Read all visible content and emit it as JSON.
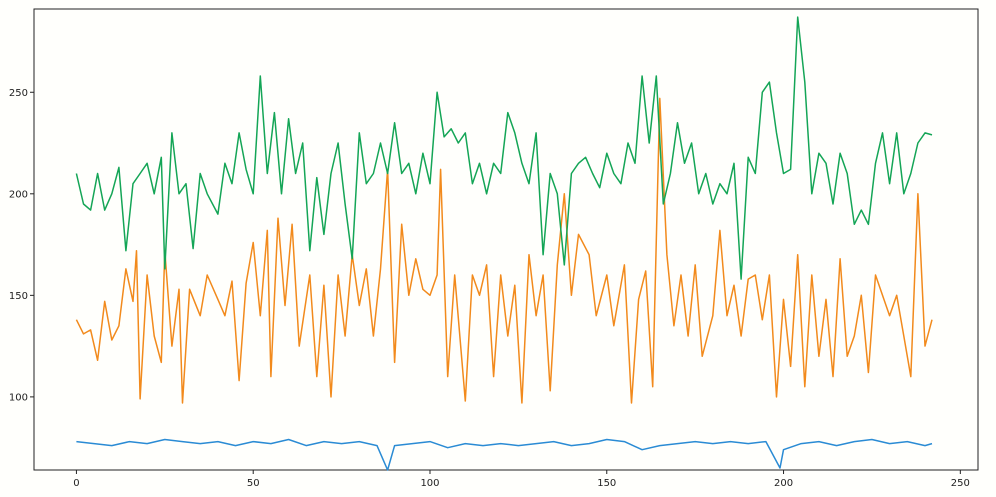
{
  "chart_data": {
    "type": "line",
    "title": "",
    "xlabel": "",
    "ylabel": "",
    "xlim": [
      -12,
      255
    ],
    "ylim": [
      64,
      291
    ],
    "x_ticks": [
      0,
      50,
      100,
      150,
      200,
      250
    ],
    "y_ticks": [
      100,
      150,
      200,
      250
    ],
    "grid": false,
    "legend": "none",
    "series": [
      {
        "color": "#2a8bd4",
        "points": [
          [
            0,
            78
          ],
          [
            5,
            77
          ],
          [
            10,
            76
          ],
          [
            15,
            78
          ],
          [
            20,
            77
          ],
          [
            25,
            79
          ],
          [
            30,
            78
          ],
          [
            35,
            77
          ],
          [
            40,
            78
          ],
          [
            45,
            76
          ],
          [
            50,
            78
          ],
          [
            55,
            77
          ],
          [
            60,
            79
          ],
          [
            65,
            76
          ],
          [
            70,
            78
          ],
          [
            75,
            77
          ],
          [
            80,
            78
          ],
          [
            85,
            76
          ],
          [
            88,
            64
          ],
          [
            90,
            76
          ],
          [
            95,
            77
          ],
          [
            100,
            78
          ],
          [
            105,
            75
          ],
          [
            110,
            77
          ],
          [
            115,
            76
          ],
          [
            120,
            77
          ],
          [
            125,
            76
          ],
          [
            130,
            77
          ],
          [
            135,
            78
          ],
          [
            140,
            76
          ],
          [
            145,
            77
          ],
          [
            150,
            79
          ],
          [
            155,
            78
          ],
          [
            160,
            74
          ],
          [
            165,
            76
          ],
          [
            170,
            77
          ],
          [
            175,
            78
          ],
          [
            180,
            77
          ],
          [
            185,
            78
          ],
          [
            190,
            77
          ],
          [
            195,
            78
          ],
          [
            199,
            65
          ],
          [
            200,
            74
          ],
          [
            205,
            77
          ],
          [
            210,
            78
          ],
          [
            215,
            76
          ],
          [
            220,
            78
          ],
          [
            225,
            79
          ],
          [
            230,
            77
          ],
          [
            235,
            78
          ],
          [
            240,
            76
          ],
          [
            242,
            77
          ]
        ]
      },
      {
        "color": "#f28a1c",
        "points": [
          [
            0,
            138
          ],
          [
            2,
            131
          ],
          [
            4,
            133
          ],
          [
            6,
            118
          ],
          [
            8,
            147
          ],
          [
            10,
            128
          ],
          [
            12,
            135
          ],
          [
            14,
            163
          ],
          [
            16,
            147
          ],
          [
            17,
            172
          ],
          [
            18,
            99
          ],
          [
            20,
            160
          ],
          [
            22,
            130
          ],
          [
            24,
            117
          ],
          [
            25,
            172
          ],
          [
            27,
            125
          ],
          [
            29,
            153
          ],
          [
            30,
            97
          ],
          [
            32,
            153
          ],
          [
            35,
            140
          ],
          [
            37,
            160
          ],
          [
            40,
            148
          ],
          [
            42,
            140
          ],
          [
            44,
            157
          ],
          [
            46,
            108
          ],
          [
            48,
            156
          ],
          [
            50,
            176
          ],
          [
            52,
            140
          ],
          [
            54,
            182
          ],
          [
            55,
            110
          ],
          [
            57,
            188
          ],
          [
            59,
            145
          ],
          [
            61,
            185
          ],
          [
            63,
            125
          ],
          [
            66,
            160
          ],
          [
            68,
            110
          ],
          [
            70,
            155
          ],
          [
            72,
            100
          ],
          [
            74,
            160
          ],
          [
            76,
            130
          ],
          [
            78,
            170
          ],
          [
            80,
            145
          ],
          [
            82,
            163
          ],
          [
            84,
            130
          ],
          [
            86,
            163
          ],
          [
            88,
            212
          ],
          [
            90,
            117
          ],
          [
            92,
            185
          ],
          [
            94,
            150
          ],
          [
            96,
            168
          ],
          [
            98,
            153
          ],
          [
            100,
            150
          ],
          [
            102,
            160
          ],
          [
            103,
            212
          ],
          [
            105,
            110
          ],
          [
            107,
            160
          ],
          [
            110,
            98
          ],
          [
            112,
            160
          ],
          [
            114,
            150
          ],
          [
            116,
            165
          ],
          [
            118,
            110
          ],
          [
            120,
            160
          ],
          [
            122,
            130
          ],
          [
            124,
            155
          ],
          [
            126,
            97
          ],
          [
            128,
            170
          ],
          [
            130,
            140
          ],
          [
            132,
            160
          ],
          [
            134,
            103
          ],
          [
            136,
            165
          ],
          [
            138,
            200
          ],
          [
            140,
            150
          ],
          [
            142,
            180
          ],
          [
            145,
            170
          ],
          [
            147,
            140
          ],
          [
            150,
            160
          ],
          [
            152,
            135
          ],
          [
            155,
            165
          ],
          [
            157,
            97
          ],
          [
            159,
            148
          ],
          [
            161,
            162
          ],
          [
            163,
            105
          ],
          [
            165,
            247
          ],
          [
            167,
            170
          ],
          [
            169,
            135
          ],
          [
            171,
            160
          ],
          [
            173,
            130
          ],
          [
            175,
            165
          ],
          [
            177,
            120
          ],
          [
            180,
            140
          ],
          [
            182,
            182
          ],
          [
            184,
            140
          ],
          [
            186,
            155
          ],
          [
            188,
            130
          ],
          [
            190,
            158
          ],
          [
            192,
            160
          ],
          [
            194,
            138
          ],
          [
            196,
            160
          ],
          [
            198,
            100
          ],
          [
            200,
            148
          ],
          [
            202,
            115
          ],
          [
            204,
            170
          ],
          [
            206,
            105
          ],
          [
            208,
            160
          ],
          [
            210,
            120
          ],
          [
            212,
            148
          ],
          [
            214,
            110
          ],
          [
            216,
            168
          ],
          [
            218,
            120
          ],
          [
            220,
            130
          ],
          [
            222,
            150
          ],
          [
            224,
            112
          ],
          [
            226,
            160
          ],
          [
            228,
            150
          ],
          [
            230,
            140
          ],
          [
            232,
            150
          ],
          [
            234,
            130
          ],
          [
            236,
            110
          ],
          [
            238,
            200
          ],
          [
            240,
            125
          ],
          [
            242,
            138
          ]
        ]
      },
      {
        "color": "#14a556",
        "points": [
          [
            0,
            210
          ],
          [
            2,
            195
          ],
          [
            4,
            192
          ],
          [
            6,
            210
          ],
          [
            8,
            192
          ],
          [
            10,
            200
          ],
          [
            12,
            213
          ],
          [
            14,
            172
          ],
          [
            16,
            205
          ],
          [
            18,
            210
          ],
          [
            20,
            215
          ],
          [
            22,
            200
          ],
          [
            24,
            218
          ],
          [
            25,
            163
          ],
          [
            27,
            230
          ],
          [
            29,
            200
          ],
          [
            31,
            205
          ],
          [
            33,
            173
          ],
          [
            35,
            210
          ],
          [
            37,
            200
          ],
          [
            40,
            190
          ],
          [
            42,
            215
          ],
          [
            44,
            205
          ],
          [
            46,
            230
          ],
          [
            48,
            212
          ],
          [
            50,
            200
          ],
          [
            52,
            258
          ],
          [
            54,
            210
          ],
          [
            56,
            240
          ],
          [
            58,
            200
          ],
          [
            60,
            237
          ],
          [
            62,
            210
          ],
          [
            64,
            225
          ],
          [
            66,
            172
          ],
          [
            68,
            208
          ],
          [
            70,
            180
          ],
          [
            72,
            210
          ],
          [
            74,
            225
          ],
          [
            76,
            195
          ],
          [
            78,
            168
          ],
          [
            80,
            230
          ],
          [
            82,
            205
          ],
          [
            84,
            210
          ],
          [
            86,
            225
          ],
          [
            88,
            210
          ],
          [
            90,
            235
          ],
          [
            92,
            210
          ],
          [
            94,
            215
          ],
          [
            96,
            200
          ],
          [
            98,
            220
          ],
          [
            100,
            205
          ],
          [
            102,
            250
          ],
          [
            104,
            228
          ],
          [
            106,
            232
          ],
          [
            108,
            225
          ],
          [
            110,
            230
          ],
          [
            112,
            205
          ],
          [
            114,
            215
          ],
          [
            116,
            200
          ],
          [
            118,
            215
          ],
          [
            120,
            210
          ],
          [
            122,
            240
          ],
          [
            124,
            230
          ],
          [
            126,
            215
          ],
          [
            128,
            205
          ],
          [
            130,
            230
          ],
          [
            132,
            170
          ],
          [
            134,
            210
          ],
          [
            136,
            200
          ],
          [
            138,
            165
          ],
          [
            140,
            210
          ],
          [
            142,
            215
          ],
          [
            144,
            218
          ],
          [
            146,
            210
          ],
          [
            148,
            203
          ],
          [
            150,
            220
          ],
          [
            152,
            210
          ],
          [
            154,
            205
          ],
          [
            156,
            225
          ],
          [
            158,
            215
          ],
          [
            160,
            258
          ],
          [
            162,
            225
          ],
          [
            164,
            258
          ],
          [
            166,
            195
          ],
          [
            168,
            210
          ],
          [
            170,
            235
          ],
          [
            172,
            215
          ],
          [
            174,
            225
          ],
          [
            176,
            200
          ],
          [
            178,
            210
          ],
          [
            180,
            195
          ],
          [
            182,
            205
          ],
          [
            184,
            200
          ],
          [
            186,
            215
          ],
          [
            188,
            158
          ],
          [
            190,
            218
          ],
          [
            192,
            210
          ],
          [
            194,
            250
          ],
          [
            196,
            255
          ],
          [
            198,
            230
          ],
          [
            200,
            210
          ],
          [
            202,
            212
          ],
          [
            204,
            287
          ],
          [
            206,
            255
          ],
          [
            208,
            200
          ],
          [
            210,
            220
          ],
          [
            212,
            215
          ],
          [
            214,
            195
          ],
          [
            216,
            220
          ],
          [
            218,
            210
          ],
          [
            220,
            185
          ],
          [
            222,
            192
          ],
          [
            224,
            185
          ],
          [
            226,
            215
          ],
          [
            228,
            230
          ],
          [
            230,
            205
          ],
          [
            232,
            230
          ],
          [
            234,
            200
          ],
          [
            236,
            210
          ],
          [
            238,
            225
          ],
          [
            240,
            230
          ],
          [
            242,
            229
          ]
        ]
      }
    ]
  }
}
